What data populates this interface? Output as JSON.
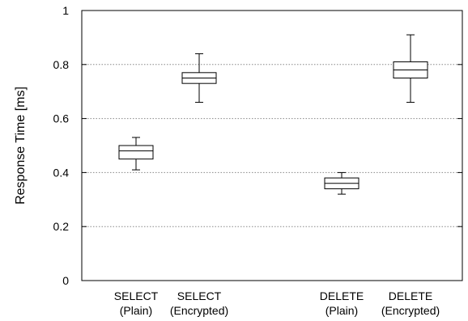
{
  "chart_data": {
    "type": "boxplot",
    "ylabel": "Response Time [ms]",
    "ylim": [
      0,
      1
    ],
    "yticks": [
      0,
      0.2,
      0.4,
      0.6,
      0.8,
      1
    ],
    "ytick_labels": [
      "0",
      "0.2",
      "0.4",
      "0.6",
      "0.8",
      "1"
    ],
    "grid": "horizontal dotted",
    "categories": [
      {
        "line1": "SELECT",
        "line2": "(Plain)"
      },
      {
        "line1": "SELECT",
        "line2": "(Encrypted)"
      },
      {
        "line1": "DELETE",
        "line2": "(Plain)"
      },
      {
        "line1": "DELETE",
        "line2": "(Encrypted)"
      }
    ],
    "boxes": [
      {
        "min": 0.41,
        "q1": 0.45,
        "median": 0.48,
        "q3": 0.5,
        "max": 0.53
      },
      {
        "min": 0.66,
        "q1": 0.73,
        "median": 0.75,
        "q3": 0.77,
        "max": 0.84
      },
      {
        "min": 0.32,
        "q1": 0.34,
        "median": 0.36,
        "q3": 0.38,
        "max": 0.4
      },
      {
        "min": 0.66,
        "q1": 0.75,
        "median": 0.78,
        "q3": 0.81,
        "max": 0.91
      }
    ]
  }
}
